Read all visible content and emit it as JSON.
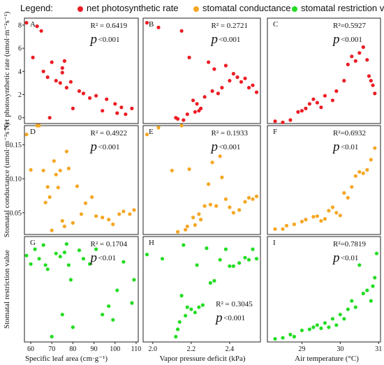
{
  "legend": {
    "title": "Legend:",
    "items": [
      {
        "label": "net photosynthetic rate",
        "color": "#ec1c24"
      },
      {
        "label": "stomatal conductance",
        "color": "#f5a623"
      },
      {
        "label": "stomatal restriction value",
        "color": "#22dd22"
      }
    ]
  },
  "axes": {
    "row_labels": [
      "Net photosynthetic rate (umol·m⁻²s⁻¹)",
      "Stomatal conductance (umol·m⁻²s⁻¹)",
      "Stomatal restriction value"
    ],
    "col_labels": [
      "Specific leaf area (cm·g⁻¹)",
      "Vapor pressure deficit (kPa)",
      "Air temperature (°C)"
    ],
    "x_ticks": [
      [
        60,
        70,
        80,
        90,
        100,
        110
      ],
      [
        2.0,
        2.2,
        2.4
      ],
      [
        29,
        30,
        31
      ]
    ],
    "x_ranges": [
      [
        57,
        111
      ],
      [
        1.95,
        2.56
      ],
      [
        28.1,
        31.05
      ]
    ],
    "y_ticks": [
      [
        0,
        2,
        4,
        6,
        8
      ],
      [
        0.05,
        0.1,
        0.15
      ],
      []
    ],
    "y_ranges": [
      [
        -0.5,
        8.6
      ],
      [
        0.018,
        0.178
      ],
      [
        0,
        1
      ]
    ],
    "curve_color": "#1f1fbf"
  },
  "chart_data": [
    {
      "panel": "A",
      "type": "scatter",
      "row": 0,
      "col": 0,
      "r2": "R² = 0.6419",
      "p_sym": "p",
      "p_rest": "<0.001",
      "color": "#ec1c24",
      "x": [
        58,
        61,
        63,
        65,
        66,
        68,
        69,
        70,
        72,
        74,
        75,
        75,
        76,
        77,
        79,
        80,
        83,
        85,
        88,
        91,
        94,
        96,
        100,
        101,
        103,
        105,
        108
      ],
      "y": [
        8.2,
        5.2,
        7.9,
        7.5,
        4.0,
        3.5,
        0,
        4.8,
        3.2,
        3.0,
        3.9,
        4.3,
        4.9,
        2.6,
        3.1,
        0.8,
        2.3,
        2.1,
        1.7,
        1.9,
        0.6,
        1.6,
        1.2,
        0.4,
        0.9,
        0.3,
        0.8
      ],
      "fit": "quadratic"
    },
    {
      "panel": "B",
      "type": "scatter",
      "row": 0,
      "col": 1,
      "r2": "R² = 0.2721",
      "p_sym": "p",
      "p_rest": "<0.001",
      "color": "#ec1c24",
      "x": [
        1.97,
        2.03,
        2.12,
        2.13,
        2.15,
        2.16,
        2.18,
        2.19,
        2.21,
        2.22,
        2.23,
        2.24,
        2.25,
        2.27,
        2.29,
        2.31,
        2.32,
        2.34,
        2.36,
        2.38,
        2.4,
        2.42,
        2.44,
        2.46,
        2.48,
        2.5,
        2.52,
        2.54
      ],
      "y": [
        8.2,
        7.8,
        0,
        -0.1,
        7.5,
        -0.2,
        0.3,
        5.2,
        1.5,
        0.5,
        1.2,
        0.6,
        0.8,
        1.8,
        4.8,
        2.3,
        4.2,
        2.1,
        2.6,
        4.5,
        3.2,
        3.8,
        3.5,
        3.1,
        3.4,
        2.6,
        2.8,
        2.2
      ],
      "fit": "quadratic"
    },
    {
      "panel": "C",
      "type": "scatter",
      "row": 0,
      "col": 2,
      "r2": "R²=0.5927",
      "p_sym": "p",
      "p_rest": "<0.001",
      "color": "#ec1c24",
      "x": [
        28.3,
        28.5,
        28.7,
        28.9,
        29.0,
        29.1,
        29.2,
        29.3,
        29.4,
        29.5,
        29.6,
        29.8,
        29.9,
        30.1,
        30.2,
        30.3,
        30.4,
        30.5,
        30.6,
        30.7,
        30.75,
        30.8,
        30.85,
        30.9
      ],
      "y": [
        -0.3,
        -0.4,
        -0.2,
        0.5,
        0.6,
        0.8,
        1.2,
        1.6,
        1.3,
        0.9,
        1.9,
        1.5,
        2.3,
        3.2,
        4.6,
        5.3,
        4.9,
        5.6,
        6.1,
        5.0,
        3.6,
        3.2,
        2.8,
        2.1
      ],
      "fit": "linear"
    },
    {
      "panel": "D",
      "type": "scatter",
      "row": 1,
      "col": 0,
      "r2": "R² = 0.4922",
      "p_sym": "p",
      "p_rest": "<0.001",
      "color": "#f5a623",
      "x": [
        58,
        60,
        63,
        64,
        66,
        67,
        68,
        69,
        70,
        71,
        72,
        73,
        74,
        75,
        76,
        77,
        78,
        80,
        82,
        84,
        86,
        89,
        91,
        94,
        97,
        99,
        102,
        104,
        107,
        109
      ],
      "y": [
        0.165,
        0.113,
        0.178,
        0.178,
        0.112,
        0.065,
        0.088,
        0.073,
        0.024,
        0.126,
        0.106,
        0.087,
        0.112,
        0.038,
        0.03,
        0.14,
        0.115,
        0.035,
        0.089,
        0.048,
        0.064,
        0.073,
        0.045,
        0.043,
        0.04,
        0.033,
        0.048,
        0.052,
        0.048,
        0.054
      ],
      "fit": "quadratic"
    },
    {
      "panel": "E",
      "type": "scatter",
      "row": 1,
      "col": 1,
      "r2": "R² = 0.1933",
      "p_sym": "p",
      "p_rest": "<0.001",
      "color": "#f5a623",
      "x": [
        1.97,
        2.03,
        2.1,
        2.13,
        2.15,
        2.17,
        2.18,
        2.19,
        2.21,
        2.22,
        2.24,
        2.25,
        2.27,
        2.29,
        2.3,
        2.31,
        2.33,
        2.35,
        2.36,
        2.38,
        2.4,
        2.42,
        2.45,
        2.48,
        2.5,
        2.52,
        2.54
      ],
      "y": [
        0.165,
        0.175,
        0.112,
        0.022,
        0.178,
        0.025,
        0.03,
        0.114,
        0.043,
        0.032,
        0.048,
        0.04,
        0.06,
        0.092,
        0.062,
        0.124,
        0.06,
        0.133,
        0.102,
        0.07,
        0.058,
        0.05,
        0.054,
        0.066,
        0.072,
        0.07,
        0.074
      ],
      "fit": "quadratic"
    },
    {
      "panel": "F",
      "type": "scatter",
      "row": 1,
      "col": 2,
      "r2": "R²=0.6932",
      "p_sym": "p",
      "p_rest": "<0.01",
      "color": "#f5a623",
      "x": [
        28.3,
        28.5,
        28.6,
        28.8,
        29.0,
        29.1,
        29.3,
        29.4,
        29.5,
        29.6,
        29.7,
        29.8,
        29.9,
        30.0,
        30.1,
        30.2,
        30.3,
        30.4,
        30.5,
        30.6,
        30.7,
        30.8,
        30.9
      ],
      "y": [
        0.026,
        0.026,
        0.031,
        0.033,
        0.037,
        0.04,
        0.044,
        0.045,
        0.038,
        0.041,
        0.053,
        0.058,
        0.05,
        0.046,
        0.079,
        0.072,
        0.088,
        0.104,
        0.11,
        0.108,
        0.113,
        0.128,
        0.145
      ],
      "fit": "exponential"
    },
    {
      "panel": "G",
      "type": "scatter",
      "row": 2,
      "col": 0,
      "r2": "R² = 0.1704",
      "p_sym": "p",
      "p_rest": "<0.01",
      "color": "#22dd22",
      "x": [
        58,
        60,
        62,
        64,
        66,
        67,
        68,
        70,
        72,
        74,
        75,
        76,
        77,
        78,
        79,
        80,
        83,
        85,
        88,
        91,
        94,
        97,
        99,
        101,
        104,
        108,
        109
      ],
      "y": [
        0.82,
        0.74,
        0.88,
        0.79,
        0.92,
        0.73,
        0.69,
        0.05,
        0.84,
        0.81,
        0.26,
        0.85,
        0.93,
        0.73,
        0.59,
        0.14,
        0.87,
        0.79,
        0.74,
        0.88,
        0.26,
        0.34,
        0.21,
        0.49,
        0.76,
        0.37,
        0.59
      ],
      "fit": "linear"
    },
    {
      "panel": "H",
      "type": "scatter",
      "row": 2,
      "col": 1,
      "r2": "R² = 0.3045",
      "p_sym": "p",
      "p_rest": "<0.001",
      "color": "#22dd22",
      "x": [
        1.97,
        2.05,
        2.12,
        2.13,
        2.14,
        2.15,
        2.16,
        2.17,
        2.18,
        2.2,
        2.22,
        2.23,
        2.24,
        2.26,
        2.28,
        2.3,
        2.32,
        2.35,
        2.38,
        2.4,
        2.42,
        2.45,
        2.48,
        2.5,
        2.52,
        2.54
      ],
      "y": [
        0.83,
        0.79,
        0.05,
        0.12,
        0.19,
        0.44,
        0.92,
        0.25,
        0.33,
        0.31,
        0.28,
        0.73,
        0.33,
        0.35,
        0.89,
        0.56,
        0.58,
        0.78,
        0.88,
        0.72,
        0.72,
        0.75,
        0.8,
        0.78,
        0.88,
        0.79
      ],
      "fit": "quadratic"
    },
    {
      "panel": "I",
      "type": "scatter",
      "row": 2,
      "col": 2,
      "r2": "R²=0.7819",
      "p_sym": "p",
      "p_rest": "<0.01",
      "color": "#22dd22",
      "x": [
        28.3,
        28.5,
        28.7,
        28.8,
        29.0,
        29.2,
        29.3,
        29.4,
        29.5,
        29.6,
        29.7,
        29.8,
        29.9,
        30.0,
        30.1,
        30.2,
        30.3,
        30.4,
        30.5,
        30.6,
        30.7,
        30.8,
        30.85,
        30.9,
        30.95
      ],
      "y": [
        0.03,
        0.04,
        0.07,
        0.05,
        0.11,
        0.12,
        0.14,
        0.16,
        0.13,
        0.18,
        0.14,
        0.22,
        0.16,
        0.26,
        0.22,
        0.31,
        0.39,
        0.33,
        0.73,
        0.46,
        0.49,
        0.39,
        0.53,
        0.61,
        0.84
      ],
      "fit": "exponential"
    }
  ]
}
